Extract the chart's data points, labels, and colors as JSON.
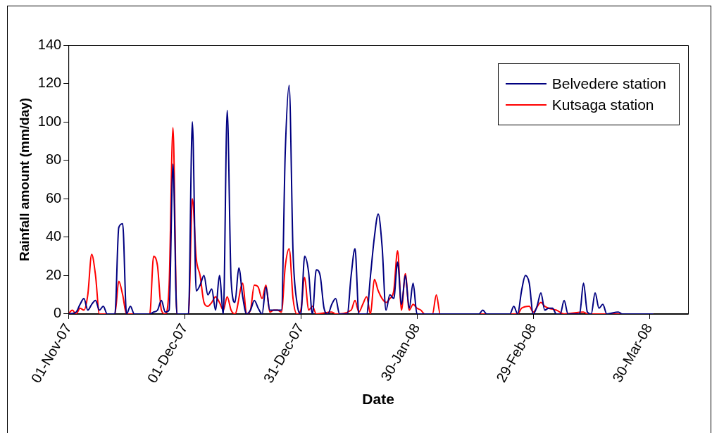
{
  "chart_data": {
    "type": "line",
    "xlabel": "Date",
    "ylabel": "Rainfall amount (mm/day)",
    "xlim": [
      "2007-11-01",
      "2008-04-09"
    ],
    "xticks": [
      {
        "value": "2007-11-01",
        "label": "01-Nov-07"
      },
      {
        "value": "2007-12-01",
        "label": "01-Dec-07"
      },
      {
        "value": "2007-12-31",
        "label": "31-Dec-07"
      },
      {
        "value": "2008-01-30",
        "label": "30-Jan-08"
      },
      {
        "value": "2008-02-29",
        "label": "29-Feb-08"
      },
      {
        "value": "2008-03-30",
        "label": "30-Mar-08"
      }
    ],
    "ylim": [
      0,
      140
    ],
    "yticks": [
      0,
      20,
      40,
      60,
      80,
      100,
      120,
      140
    ],
    "grid": false,
    "legend": "top right",
    "marker": "none",
    "line_style": "solid",
    "series": [
      {
        "name": "Belvedere station",
        "color": "#000080",
        "x": [
          "2007-11-01",
          "2007-11-03",
          "2007-11-04",
          "2007-11-05",
          "2007-11-06",
          "2007-11-07",
          "2007-11-08",
          "2007-11-09",
          "2007-11-10",
          "2007-11-11",
          "2007-11-13",
          "2007-11-14",
          "2007-11-15",
          "2007-11-16",
          "2007-11-17",
          "2007-11-18",
          "2007-11-22",
          "2007-11-23",
          "2007-11-24",
          "2007-11-25",
          "2007-11-26",
          "2007-11-27",
          "2007-11-28",
          "2007-11-29",
          "2007-12-02",
          "2007-12-03",
          "2007-12-04",
          "2007-12-05",
          "2007-12-06",
          "2007-12-07",
          "2007-12-08",
          "2007-12-09",
          "2007-12-10",
          "2007-12-11",
          "2007-12-12",
          "2007-12-13",
          "2007-12-14",
          "2007-12-15",
          "2007-12-16",
          "2007-12-17",
          "2007-12-18",
          "2007-12-19",
          "2007-12-20",
          "2007-12-21",
          "2007-12-22",
          "2007-12-23",
          "2007-12-26",
          "2007-12-27",
          "2007-12-28",
          "2007-12-29",
          "2007-12-30",
          "2007-12-31",
          "2008-01-01",
          "2008-01-02",
          "2008-01-03",
          "2008-01-04",
          "2008-01-05",
          "2008-01-06",
          "2008-01-07",
          "2008-01-08",
          "2008-01-09",
          "2008-01-10",
          "2008-01-12",
          "2008-01-13",
          "2008-01-14",
          "2008-01-15",
          "2008-01-17",
          "2008-01-18",
          "2008-01-19",
          "2008-01-20",
          "2008-01-21",
          "2008-01-22",
          "2008-01-23",
          "2008-01-24",
          "2008-01-25",
          "2008-01-26",
          "2008-01-27",
          "2008-01-28",
          "2008-01-29",
          "2008-01-30",
          "2008-02-15",
          "2008-02-16",
          "2008-02-17",
          "2008-02-23",
          "2008-02-24",
          "2008-02-25",
          "2008-02-26",
          "2008-02-27",
          "2008-02-28",
          "2008-02-29",
          "2008-03-01",
          "2008-03-02",
          "2008-03-03",
          "2008-03-04",
          "2008-03-05",
          "2008-03-06",
          "2008-03-07",
          "2008-03-08",
          "2008-03-09",
          "2008-03-12",
          "2008-03-13",
          "2008-03-14",
          "2008-03-15",
          "2008-03-16",
          "2008-03-17",
          "2008-03-18",
          "2008-03-19",
          "2008-03-22",
          "2008-03-23",
          "2008-03-31"
        ],
        "values": [
          0,
          1,
          5,
          8,
          2,
          5,
          7,
          2,
          4,
          0,
          0,
          45,
          47,
          0,
          4,
          0,
          0,
          1,
          2,
          7,
          1,
          2,
          78,
          0,
          0,
          100,
          12,
          15,
          20,
          10,
          13,
          2,
          20,
          0,
          106,
          18,
          6,
          24,
          9,
          0,
          2,
          7,
          3,
          0,
          14,
          2,
          2,
          85,
          119,
          32,
          6,
          0,
          30,
          22,
          0,
          23,
          20,
          3,
          0,
          5,
          8,
          0,
          0,
          20,
          34,
          0,
          0,
          20,
          40,
          52,
          35,
          2,
          10,
          8,
          27,
          5,
          20,
          3,
          16,
          0,
          0,
          2,
          0,
          0,
          4,
          0,
          12,
          20,
          16,
          0,
          4,
          11,
          2,
          3,
          3,
          0,
          0,
          7,
          0,
          0,
          16,
          1,
          0,
          11,
          3,
          5,
          0,
          1,
          0,
          0
        ]
      },
      {
        "name": "Kutsaga station",
        "color": "#ff0000",
        "x": [
          "2007-11-01",
          "2007-11-02",
          "2007-11-03",
          "2007-11-04",
          "2007-11-05",
          "2007-11-06",
          "2007-11-07",
          "2007-11-08",
          "2007-11-09",
          "2007-11-13",
          "2007-11-14",
          "2007-11-15",
          "2007-11-16",
          "2007-11-22",
          "2007-11-23",
          "2007-11-24",
          "2007-11-25",
          "2007-11-26",
          "2007-11-27",
          "2007-11-28",
          "2007-11-29",
          "2007-12-02",
          "2007-12-03",
          "2007-12-04",
          "2007-12-05",
          "2007-12-06",
          "2007-12-07",
          "2007-12-08",
          "2007-12-09",
          "2007-12-10",
          "2007-12-11",
          "2007-12-12",
          "2007-12-13",
          "2007-12-14",
          "2007-12-16",
          "2007-12-17",
          "2007-12-18",
          "2007-12-19",
          "2007-12-20",
          "2007-12-21",
          "2007-12-22",
          "2007-12-23",
          "2007-12-24",
          "2007-12-25",
          "2007-12-26",
          "2007-12-27",
          "2007-12-28",
          "2007-12-29",
          "2007-12-30",
          "2007-12-31",
          "2008-01-01",
          "2008-01-02",
          "2008-01-03",
          "2008-01-04",
          "2008-01-08",
          "2008-01-09",
          "2008-01-13",
          "2008-01-14",
          "2008-01-15",
          "2008-01-16",
          "2008-01-17",
          "2008-01-18",
          "2008-01-19",
          "2008-01-20",
          "2008-01-21",
          "2008-01-22",
          "2008-01-23",
          "2008-01-24",
          "2008-01-25",
          "2008-01-26",
          "2008-01-27",
          "2008-01-28",
          "2008-01-29",
          "2008-01-30",
          "2008-01-31",
          "2008-02-01",
          "2008-02-03",
          "2008-02-04",
          "2008-02-05",
          "2008-02-25",
          "2008-02-26",
          "2008-02-28",
          "2008-02-29",
          "2008-03-02",
          "2008-03-03",
          "2008-03-04",
          "2008-03-06",
          "2008-03-08",
          "2008-03-13",
          "2008-03-14",
          "2008-03-31"
        ],
        "values": [
          0,
          2,
          0,
          3,
          2,
          10,
          31,
          20,
          0,
          0,
          17,
          10,
          0,
          0,
          30,
          25,
          2,
          0,
          15,
          97,
          0,
          0,
          60,
          29,
          20,
          6,
          4,
          6,
          9,
          6,
          2,
          9,
          2,
          0,
          16,
          0,
          2,
          15,
          14,
          8,
          15,
          1,
          2,
          2,
          1,
          25,
          34,
          8,
          0,
          2,
          19,
          2,
          4,
          0,
          1,
          0,
          2,
          7,
          1,
          5,
          9,
          0,
          18,
          12,
          8,
          6,
          8,
          12,
          33,
          2,
          21,
          2,
          5,
          3,
          2,
          0,
          0,
          10,
          0,
          0,
          3,
          4,
          1,
          6,
          4,
          3,
          2,
          0,
          1,
          0,
          0
        ]
      }
    ]
  }
}
